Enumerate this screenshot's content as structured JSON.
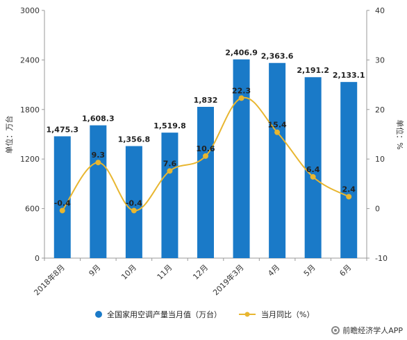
{
  "chart_data": {
    "type": "bar",
    "categories": [
      "2018年8月",
      "9月",
      "10月",
      "11月",
      "12月",
      "2019年3月",
      "4月",
      "5月",
      "6月"
    ],
    "series": [
      {
        "name": "全国家用空调产量当月值（万台）",
        "type": "bar",
        "axis": "left",
        "values": [
          1475.3,
          1608.3,
          1356.8,
          1519.8,
          1832,
          2406.9,
          2363.6,
          2191.2,
          2133.1
        ],
        "labels": [
          "1,475.3",
          "1,608.3",
          "1,356.8",
          "1,519.8",
          "1,832",
          "2,406.9",
          "2,363.6",
          "2,191.2",
          "2,133.1"
        ],
        "color": "#1a7ac8"
      },
      {
        "name": "当月同比（%）",
        "type": "line",
        "axis": "right",
        "values": [
          -0.4,
          9.3,
          -0.4,
          7.6,
          10.6,
          22.3,
          15.4,
          6.4,
          2.4
        ],
        "labels": [
          "-0.4",
          "9.3",
          "-0.4",
          "7.6",
          "10.6",
          "22.3",
          "15.4",
          "6.4",
          "2.4"
        ],
        "color": "#e8b630"
      }
    ],
    "ylabel": "单位：万台",
    "y2label": "单位：%",
    "ylim": [
      0,
      3000
    ],
    "y2lim": [
      -10,
      40
    ],
    "yticks": [
      "0",
      "600",
      "1200",
      "1800",
      "2400",
      "3000"
    ],
    "y2ticks": [
      "-10",
      "0",
      "10",
      "20",
      "30",
      "40"
    ],
    "grid": false,
    "legend": "bottom-center"
  },
  "footer": {
    "source": "前瞻经济学人APP",
    "icon": "qianzhan-logo-icon"
  }
}
